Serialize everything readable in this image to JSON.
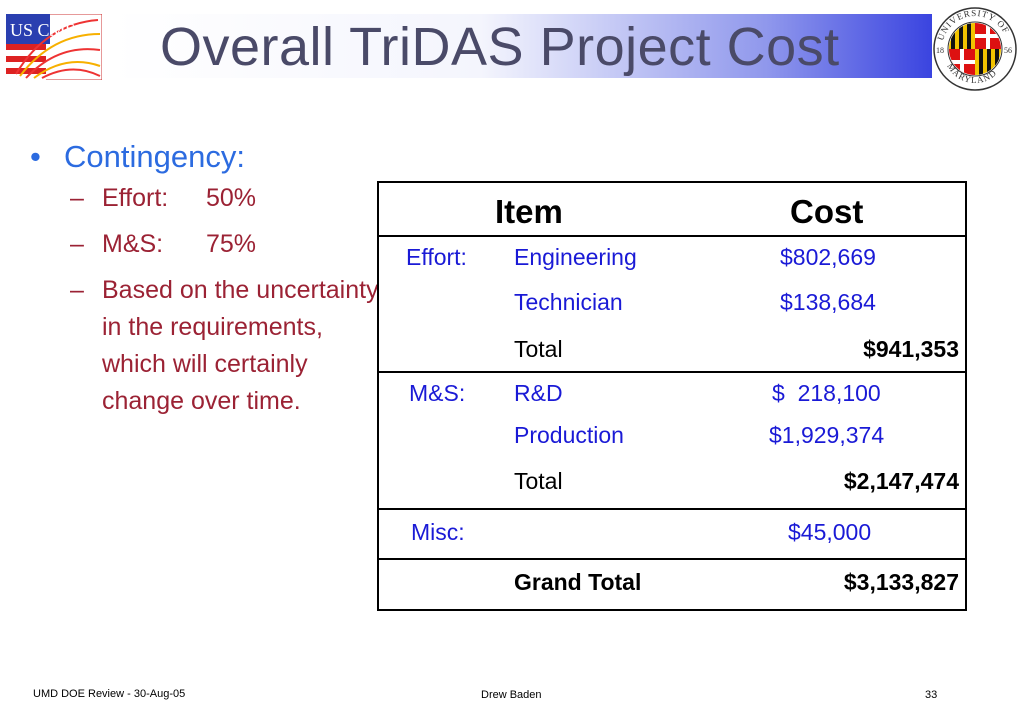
{
  "slide": {
    "title": "Overall TriDAS Project Cost",
    "logo_left_text": "US CMS",
    "logo_right_top": "UNIVERSITY OF",
    "logo_right_bottom": "MARYLAND",
    "logo_right_year_left": "18",
    "logo_right_year_right": "56"
  },
  "bullets": {
    "main": "Contingency:",
    "sub": [
      {
        "label": "Effort:",
        "value": "50%"
      },
      {
        "label": "M&S:",
        "value": "75%"
      }
    ],
    "note": "Based on the uncertainty in the requirements, which will certainly change over time."
  },
  "table": {
    "headers": {
      "item": "Item",
      "cost": "Cost"
    },
    "effort": {
      "category": "Effort:",
      "rows": [
        {
          "item": "Engineering",
          "cost": "$802,669"
        },
        {
          "item": "Technician",
          "cost": "$138,684"
        }
      ],
      "total_label": "Total",
      "total": "$941,353"
    },
    "ms": {
      "category": "M&S:",
      "rows": [
        {
          "item": "R&D",
          "cost": "$  218,100"
        },
        {
          "item": "Production",
          "cost": "$1,929,374"
        }
      ],
      "total_label": "Total",
      "total": "$2,147,474"
    },
    "misc": {
      "category": "Misc:",
      "cost": "$45,000"
    },
    "grand": {
      "label": "Grand Total",
      "cost": "$3,133,827"
    }
  },
  "footer": {
    "left": "UMD DOE Review - 30-Aug-05",
    "center": "Drew Baden",
    "right": "33"
  }
}
